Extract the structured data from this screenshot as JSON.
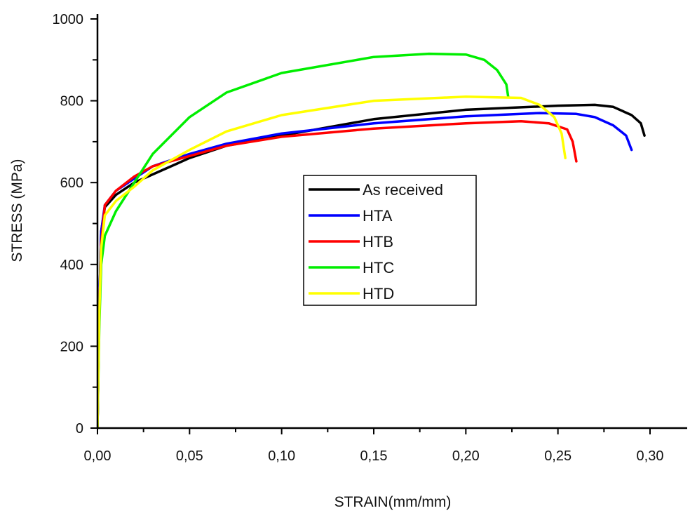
{
  "chart_data": {
    "type": "line",
    "xlabel": "STRAIN(mm/mm)",
    "ylabel": "STRESS (MPa)",
    "xlim": [
      0,
      0.33
    ],
    "ylim": [
      0,
      1000
    ],
    "x_ticks": [
      0,
      0.05,
      0.1,
      0.15,
      0.2,
      0.25,
      0.3
    ],
    "x_tick_labels": [
      "0,00",
      "0,05",
      "0,10",
      "0,15",
      "0,20",
      "0,25",
      "0,30"
    ],
    "y_ticks": [
      0,
      200,
      400,
      600,
      800,
      1000
    ],
    "y_tick_labels": [
      "0",
      "200",
      "400",
      "600",
      "800",
      "1000"
    ],
    "grid": false,
    "legend_position": "center",
    "series": [
      {
        "name": "As received",
        "color": "#000000",
        "points": [
          [
            0,
            0
          ],
          [
            0.001,
            300
          ],
          [
            0.002,
            480
          ],
          [
            0.004,
            540
          ],
          [
            0.01,
            570
          ],
          [
            0.02,
            600
          ],
          [
            0.03,
            620
          ],
          [
            0.04,
            640
          ],
          [
            0.05,
            660
          ],
          [
            0.07,
            690
          ],
          [
            0.1,
            715
          ],
          [
            0.15,
            755
          ],
          [
            0.2,
            778
          ],
          [
            0.25,
            788
          ],
          [
            0.27,
            790
          ],
          [
            0.28,
            785
          ],
          [
            0.29,
            765
          ],
          [
            0.295,
            745
          ],
          [
            0.297,
            715
          ]
        ]
      },
      {
        "name": "HTA",
        "color": "#0000ff",
        "points": [
          [
            0,
            0
          ],
          [
            0.001,
            300
          ],
          [
            0.002,
            480
          ],
          [
            0.004,
            545
          ],
          [
            0.01,
            580
          ],
          [
            0.02,
            610
          ],
          [
            0.03,
            640
          ],
          [
            0.05,
            670
          ],
          [
            0.07,
            695
          ],
          [
            0.1,
            720
          ],
          [
            0.15,
            745
          ],
          [
            0.2,
            762
          ],
          [
            0.24,
            770
          ],
          [
            0.26,
            768
          ],
          [
            0.27,
            760
          ],
          [
            0.28,
            740
          ],
          [
            0.287,
            715
          ],
          [
            0.29,
            680
          ]
        ]
      },
      {
        "name": "HTB",
        "color": "#ff0000",
        "points": [
          [
            0,
            0
          ],
          [
            0.001,
            280
          ],
          [
            0.002,
            450
          ],
          [
            0.004,
            545
          ],
          [
            0.01,
            580
          ],
          [
            0.02,
            615
          ],
          [
            0.03,
            640
          ],
          [
            0.05,
            665
          ],
          [
            0.07,
            690
          ],
          [
            0.1,
            712
          ],
          [
            0.15,
            732
          ],
          [
            0.2,
            745
          ],
          [
            0.23,
            750
          ],
          [
            0.245,
            745
          ],
          [
            0.255,
            730
          ],
          [
            0.258,
            700
          ],
          [
            0.26,
            652
          ]
        ]
      },
      {
        "name": "HTC",
        "color": "#00ee00",
        "points": [
          [
            0,
            0
          ],
          [
            0.001,
            250
          ],
          [
            0.002,
            400
          ],
          [
            0.004,
            470
          ],
          [
            0.01,
            530
          ],
          [
            0.02,
            600
          ],
          [
            0.03,
            670
          ],
          [
            0.05,
            760
          ],
          [
            0.07,
            820
          ],
          [
            0.1,
            868
          ],
          [
            0.15,
            907
          ],
          [
            0.18,
            915
          ],
          [
            0.2,
            913
          ],
          [
            0.21,
            900
          ],
          [
            0.217,
            875
          ],
          [
            0.222,
            840
          ],
          [
            0.223,
            810
          ]
        ]
      },
      {
        "name": "HTD",
        "color": "#ffff00",
        "points": [
          [
            0,
            0
          ],
          [
            0.001,
            280
          ],
          [
            0.002,
            440
          ],
          [
            0.004,
            520
          ],
          [
            0.01,
            555
          ],
          [
            0.02,
            590
          ],
          [
            0.03,
            630
          ],
          [
            0.05,
            680
          ],
          [
            0.07,
            725
          ],
          [
            0.1,
            765
          ],
          [
            0.15,
            800
          ],
          [
            0.2,
            810
          ],
          [
            0.23,
            807
          ],
          [
            0.24,
            790
          ],
          [
            0.248,
            760
          ],
          [
            0.252,
            720
          ],
          [
            0.254,
            660
          ]
        ]
      }
    ],
    "legend_labels": [
      "As received",
      "HTA",
      "HTB",
      "HTC",
      "HTD"
    ]
  }
}
